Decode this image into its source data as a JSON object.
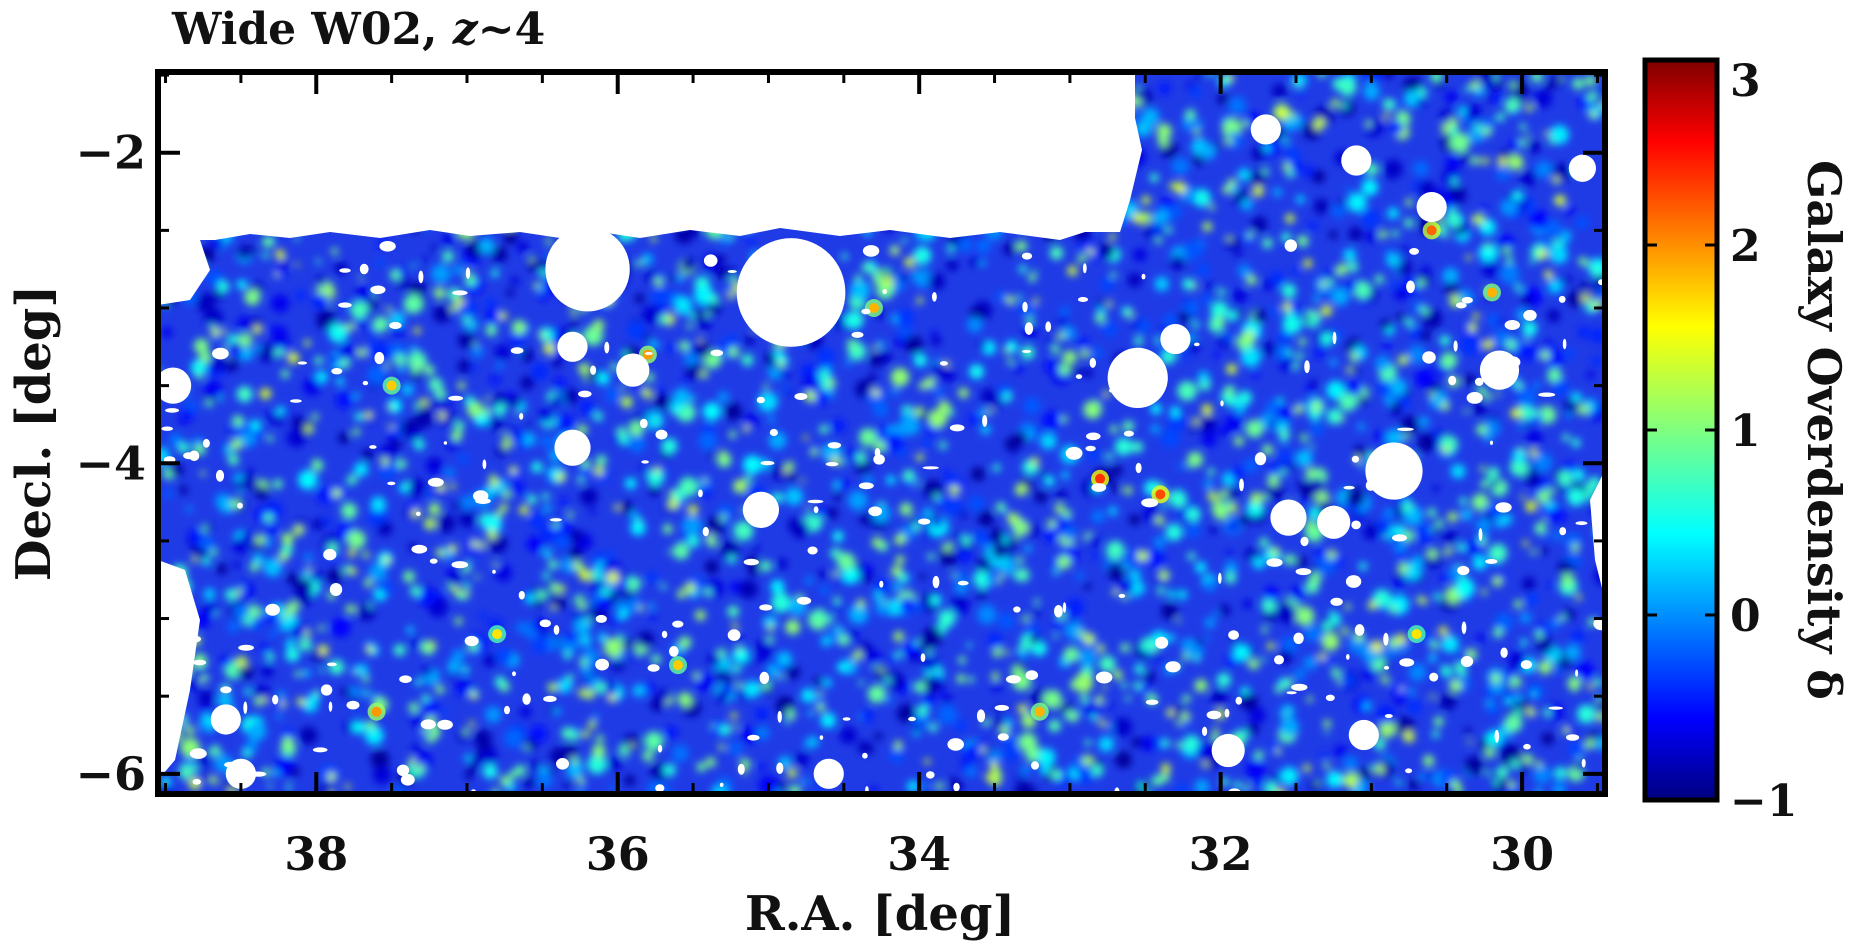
{
  "chart_data": {
    "type": "heatmap",
    "title_prefix": "Wide W02, ",
    "title_z": "z",
    "title_suffix": "~4",
    "xlabel": "R.A. [deg]",
    "ylabel": "Decl. [deg]",
    "xlim": [
      39.05,
      29.45
    ],
    "ylim": [
      -6.13,
      -1.48
    ],
    "x_ticks": [
      38,
      36,
      34,
      32,
      30
    ],
    "x_tick_labels": [
      "38",
      "36",
      "34",
      "32",
      "30"
    ],
    "y_ticks": [
      -2,
      -4,
      -6
    ],
    "y_tick_labels": [
      "−2",
      "−4",
      "−6"
    ],
    "colorbar": {
      "label": "Galaxy Overdensity δ",
      "range": [
        -1,
        3
      ],
      "ticks": [
        -1,
        0,
        1,
        2,
        3
      ],
      "tick_labels": [
        "−1",
        "0",
        "1",
        "2",
        "3"
      ],
      "colormap": "jet"
    },
    "masked_holes_deg": [
      {
        "ra": 36.2,
        "dec": -2.75,
        "r": 0.28
      },
      {
        "ra": 34.85,
        "dec": -2.9,
        "r": 0.36
      },
      {
        "ra": 36.3,
        "dec": -3.25,
        "r": 0.1
      },
      {
        "ra": 35.9,
        "dec": -3.4,
        "r": 0.11
      },
      {
        "ra": 36.3,
        "dec": -3.9,
        "r": 0.12
      },
      {
        "ra": 35.05,
        "dec": -4.3,
        "r": 0.12
      },
      {
        "ra": 34.6,
        "dec": -6.0,
        "r": 0.1
      },
      {
        "ra": 32.55,
        "dec": -3.45,
        "r": 0.2
      },
      {
        "ra": 32.3,
        "dec": -3.2,
        "r": 0.1
      },
      {
        "ra": 31.7,
        "dec": -1.85,
        "r": 0.1
      },
      {
        "ra": 31.1,
        "dec": -2.05,
        "r": 0.1
      },
      {
        "ra": 30.6,
        "dec": -2.35,
        "r": 0.1
      },
      {
        "ra": 30.15,
        "dec": -3.4,
        "r": 0.13
      },
      {
        "ra": 29.6,
        "dec": -2.1,
        "r": 0.09
      },
      {
        "ra": 30.85,
        "dec": -4.05,
        "r": 0.19
      },
      {
        "ra": 31.55,
        "dec": -4.35,
        "r": 0.12
      },
      {
        "ra": 31.25,
        "dec": -4.38,
        "r": 0.11
      },
      {
        "ra": 31.05,
        "dec": -5.75,
        "r": 0.1
      },
      {
        "ra": 31.95,
        "dec": -5.85,
        "r": 0.11
      },
      {
        "ra": 38.6,
        "dec": -5.65,
        "r": 0.1
      },
      {
        "ra": 38.5,
        "dec": -6.0,
        "r": 0.1
      },
      {
        "ra": 38.95,
        "dec": -3.5,
        "r": 0.12
      }
    ],
    "overdensity_peaks_deg": [
      {
        "ra": 30.6,
        "dec": -2.5,
        "delta": 2.1
      },
      {
        "ra": 30.2,
        "dec": -2.9,
        "delta": 1.8
      },
      {
        "ra": 32.8,
        "dec": -4.1,
        "delta": 2.3
      },
      {
        "ra": 32.4,
        "dec": -4.2,
        "delta": 2.2
      },
      {
        "ra": 35.8,
        "dec": -3.3,
        "delta": 1.9
      },
      {
        "ra": 37.5,
        "dec": -3.5,
        "delta": 1.7
      },
      {
        "ra": 34.3,
        "dec": -3.0,
        "delta": 1.8
      },
      {
        "ra": 36.8,
        "dec": -5.1,
        "delta": 1.6
      },
      {
        "ra": 37.6,
        "dec": -5.6,
        "delta": 1.9
      },
      {
        "ra": 33.2,
        "dec": -5.6,
        "delta": 1.8
      },
      {
        "ra": 35.6,
        "dec": -5.3,
        "delta": 1.7
      },
      {
        "ra": 30.7,
        "dec": -5.1,
        "delta": 1.6
      }
    ]
  }
}
